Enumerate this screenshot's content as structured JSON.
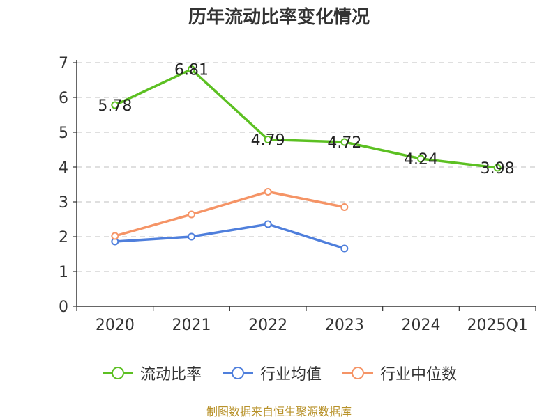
{
  "chart_data": {
    "type": "line",
    "title": "历年流动比率变化情况",
    "categories": [
      "2020",
      "2021",
      "2022",
      "2023",
      "2024",
      "2025Q1"
    ],
    "y_ticks": [
      "0",
      "1",
      "2",
      "3",
      "4",
      "5",
      "6",
      "7"
    ],
    "ylim": [
      0,
      7
    ],
    "grid": true,
    "legend_position": "bottom",
    "series": [
      {
        "name": "流动比率",
        "color": "#5cc022",
        "values": [
          5.78,
          6.81,
          4.79,
          4.72,
          4.24,
          3.98
        ],
        "labels": [
          "5.78",
          "6.81",
          "4.79",
          "4.72",
          "4.24",
          "3.98"
        ]
      },
      {
        "name": "行业均值",
        "color": "#4f7fdc",
        "values": [
          1.86,
          2.0,
          2.36,
          1.66,
          null,
          null
        ]
      },
      {
        "name": "行业中位数",
        "color": "#f59466",
        "values": [
          2.02,
          2.64,
          3.29,
          2.85,
          null,
          null
        ]
      }
    ],
    "source": "制图数据来自恒生聚源数据库"
  }
}
